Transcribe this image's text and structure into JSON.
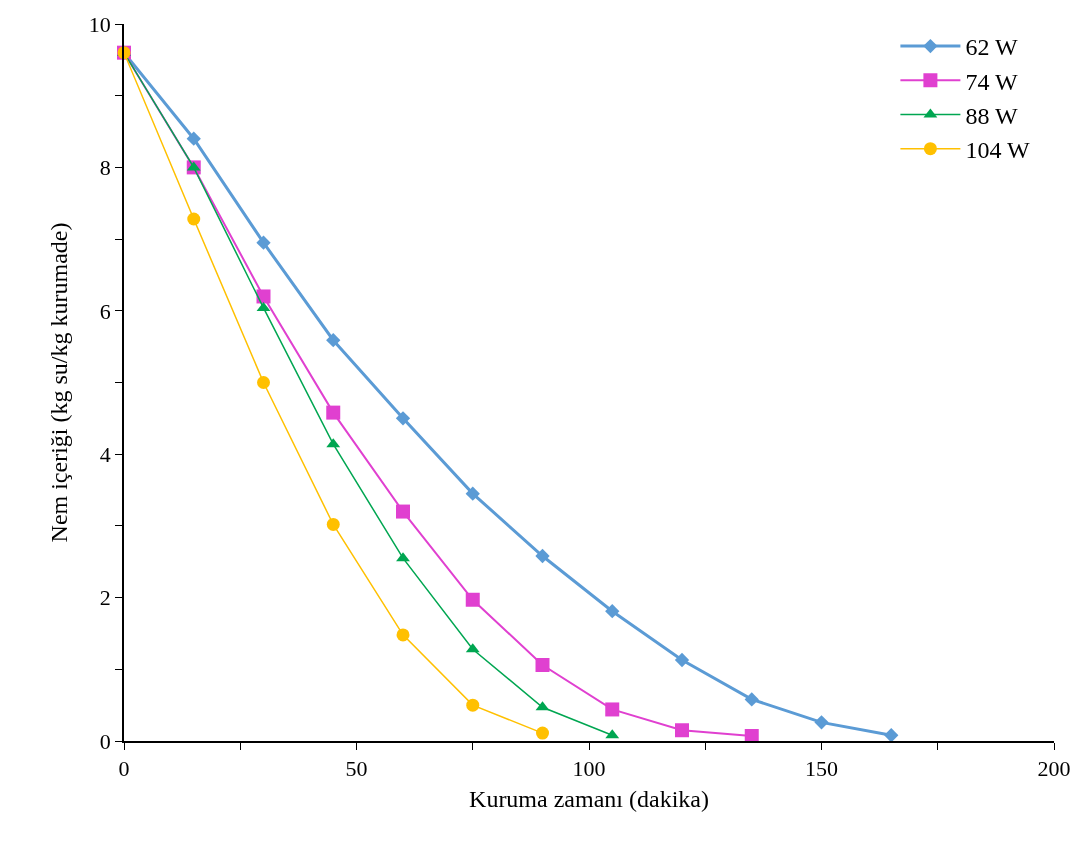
{
  "chart_data": {
    "type": "line",
    "xlabel": "Kuruma zamanı (dakika)",
    "ylabel": "Nem içeriği (kg su/kg kurumade)",
    "xlim": [
      0,
      200
    ],
    "ylim": [
      0,
      10
    ],
    "xticks": [
      0,
      {
        "value": 25,
        "label": null
      },
      50,
      {
        "value": 75,
        "label": null
      },
      100,
      {
        "value": 125,
        "label": null
      },
      150,
      {
        "value": 175,
        "label": null
      },
      200
    ],
    "yticks": [
      0,
      {
        "value": 1,
        "label": null
      },
      2,
      {
        "value": 3,
        "label": null
      },
      4,
      {
        "value": 5,
        "label": null
      },
      6,
      {
        "value": 7,
        "label": null
      },
      8,
      {
        "value": 9,
        "label": null
      },
      10
    ],
    "grid": false,
    "legend": "top right",
    "line_style": "solid",
    "series": [
      {
        "name": "62 W",
        "color": "#5b9bd5",
        "marker": "diamond",
        "x": [
          0,
          15,
          30,
          45,
          60,
          75,
          90,
          105,
          120,
          135,
          150,
          165
        ],
        "values": [
          9.6,
          8.4,
          6.95,
          5.59,
          4.5,
          3.45,
          2.58,
          1.81,
          1.13,
          0.58,
          0.26,
          0.08
        ]
      },
      {
        "name": "74 W",
        "color": "#e040d0",
        "marker": "square",
        "x": [
          0,
          15,
          30,
          45,
          60,
          75,
          90,
          105,
          120,
          135
        ],
        "values": [
          9.6,
          8.0,
          6.2,
          4.58,
          3.2,
          1.97,
          1.06,
          0.44,
          0.15,
          0.07
        ]
      },
      {
        "name": "88 W",
        "color": "#00a651",
        "marker": "triangle",
        "x": [
          0,
          15,
          30,
          45,
          60,
          75,
          90,
          105
        ],
        "values": [
          9.6,
          8.0,
          6.04,
          4.14,
          2.55,
          1.28,
          0.47,
          0.08
        ]
      },
      {
        "name": "104 W",
        "color": "#ffc000",
        "marker": "circle",
        "x": [
          0,
          15,
          30,
          45,
          60,
          75,
          90
        ],
        "values": [
          9.6,
          7.28,
          5.0,
          3.02,
          1.48,
          0.5,
          0.11
        ]
      }
    ]
  }
}
